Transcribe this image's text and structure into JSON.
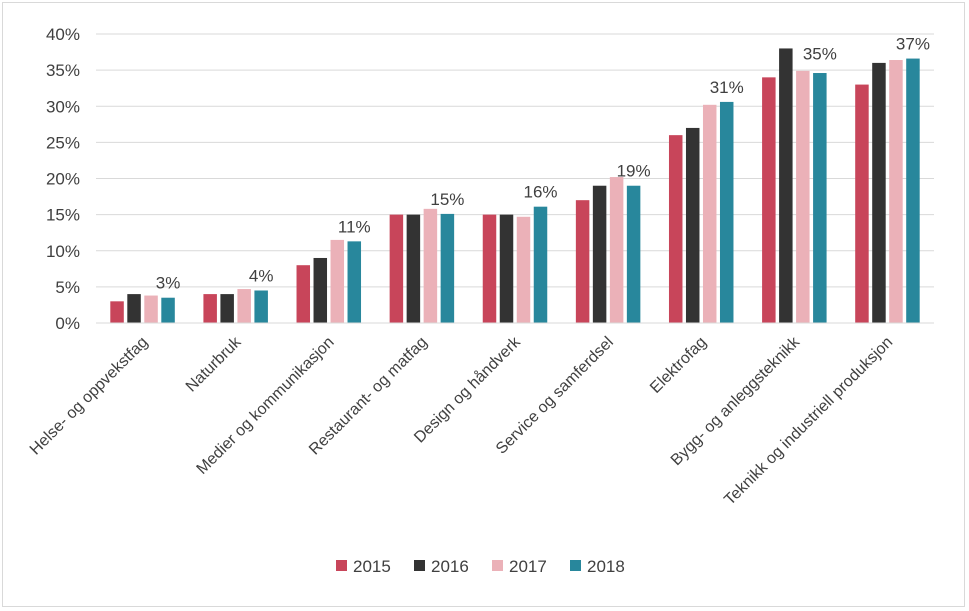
{
  "chart_data": {
    "type": "bar",
    "title": "",
    "xlabel": "",
    "ylabel": "",
    "ylim": [
      0,
      40
    ],
    "yticks": [
      "0%",
      "5%",
      "10%",
      "15%",
      "20%",
      "25%",
      "30%",
      "35%",
      "40%"
    ],
    "y_unit": "%",
    "grid": true,
    "legend_position": "bottom",
    "categories": [
      "Helse- og oppvekstfag",
      "Naturbruk",
      "Medier og kommunikasjon",
      "Restaurant- og matfag",
      "Design og håndverk",
      "Service og samferdsel",
      "Elektrofag",
      "Bygg- og anleggsteknikk",
      "Teknikk og industriell produksjon"
    ],
    "series": [
      {
        "name": "2015",
        "color": "#c8455a",
        "values": [
          3.0,
          4.0,
          8.0,
          15.0,
          15.0,
          17.0,
          26.0,
          34.0,
          33.0
        ]
      },
      {
        "name": "2016",
        "color": "#333333",
        "values": [
          4.0,
          4.0,
          9.0,
          15.0,
          15.0,
          19.0,
          27.0,
          38.0,
          36.0
        ]
      },
      {
        "name": "2017",
        "color": "#ebb1b8",
        "values": [
          3.8,
          4.7,
          11.5,
          15.8,
          14.7,
          20.2,
          30.2,
          34.9,
          36.4
        ]
      },
      {
        "name": "2018",
        "color": "#28879c",
        "values": [
          3.5,
          4.5,
          11.3,
          15.1,
          16.1,
          19.0,
          30.6,
          34.6,
          36.6
        ]
      }
    ],
    "data_labels": [
      "3%",
      "4%",
      "11%",
      "15%",
      "16%",
      "19%",
      "31%",
      "35%",
      "37%"
    ]
  },
  "colors": {
    "gridline": "#d9d9d9",
    "axis_text": "#404040",
    "frame": "#d9d9d9"
  }
}
